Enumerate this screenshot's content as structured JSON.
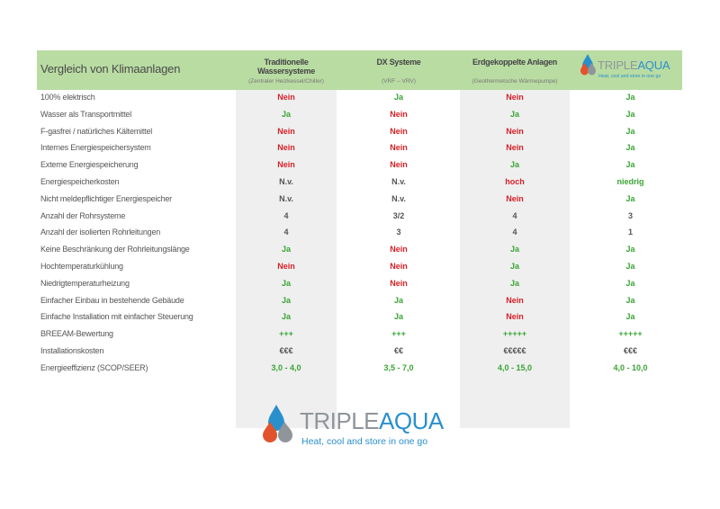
{
  "header": {
    "title": "Vergleich von Klimaanlagen",
    "columns": [
      {
        "name": "Traditionelle Wassersysteme",
        "sub": "(Zentraler Heizkessel/Chiller)"
      },
      {
        "name": "DX Systeme",
        "sub": "(VRF – VRV)"
      },
      {
        "name": "Erdgekoppelte Anlagen",
        "sub": "(Geothermetsche Wärmepumpe)"
      }
    ]
  },
  "logo": {
    "brand_a": "TRIPLE",
    "brand_b": "AQUA",
    "tagline": "Heat, cool and store in one go",
    "colors": {
      "blue": "#2a8fcd",
      "red": "#e2532d",
      "gray": "#8f959b"
    }
  },
  "rows": [
    {
      "label": "100% elektrisch",
      "values": [
        {
          "v": "Nein",
          "c": "red"
        },
        {
          "v": "Ja",
          "c": "green"
        },
        {
          "v": "Nein",
          "c": "red"
        },
        {
          "v": "Ja",
          "c": "green"
        }
      ]
    },
    {
      "label": "Wasser als Transportmittel",
      "values": [
        {
          "v": "Ja",
          "c": "green"
        },
        {
          "v": "Nein",
          "c": "red"
        },
        {
          "v": "Ja",
          "c": "green"
        },
        {
          "v": "Ja",
          "c": "green"
        }
      ]
    },
    {
      "label": "F-gasfrei / natürliches Kältemittel",
      "values": [
        {
          "v": "Nein",
          "c": "red"
        },
        {
          "v": "Nein",
          "c": "red"
        },
        {
          "v": "Nein",
          "c": "red"
        },
        {
          "v": "Ja",
          "c": "green"
        }
      ]
    },
    {
      "label": "Internes Energiespeichersystem",
      "values": [
        {
          "v": "Nein",
          "c": "red"
        },
        {
          "v": "Nein",
          "c": "red"
        },
        {
          "v": "Nein",
          "c": "red"
        },
        {
          "v": "Ja",
          "c": "green"
        }
      ]
    },
    {
      "label": "Externe Energiespeicherung",
      "values": [
        {
          "v": "Nein",
          "c": "red"
        },
        {
          "v": "Nein",
          "c": "red"
        },
        {
          "v": "Ja",
          "c": "green"
        },
        {
          "v": "Ja",
          "c": "green"
        }
      ]
    },
    {
      "label": "Energiespeicherkosten",
      "values": [
        {
          "v": "N.v.",
          "c": "gray"
        },
        {
          "v": "N.v.",
          "c": "gray"
        },
        {
          "v": "hoch",
          "c": "red"
        },
        {
          "v": "niedrig",
          "c": "green"
        }
      ]
    },
    {
      "label": "Nicht meldepflichtiger Energiespeicher",
      "values": [
        {
          "v": "N.v.",
          "c": "gray"
        },
        {
          "v": "N.v.",
          "c": "gray"
        },
        {
          "v": "Nein",
          "c": "red"
        },
        {
          "v": "Ja",
          "c": "green"
        }
      ]
    },
    {
      "label": "Anzahl der Rohrsysteme",
      "values": [
        {
          "v": "4",
          "c": "gray"
        },
        {
          "v": "3/2",
          "c": "gray"
        },
        {
          "v": "4",
          "c": "gray"
        },
        {
          "v": "3",
          "c": "gray"
        }
      ]
    },
    {
      "label": "Anzahl der isolierten Rohrleitungen",
      "values": [
        {
          "v": "4",
          "c": "gray"
        },
        {
          "v": "3",
          "c": "gray"
        },
        {
          "v": "4",
          "c": "gray"
        },
        {
          "v": "1",
          "c": "gray"
        }
      ]
    },
    {
      "label": "Keine Beschränkung der Rohrleitungslänge",
      "values": [
        {
          "v": "Ja",
          "c": "green"
        },
        {
          "v": "Nein",
          "c": "red"
        },
        {
          "v": "Ja",
          "c": "green"
        },
        {
          "v": "Ja",
          "c": "green"
        }
      ]
    },
    {
      "label": "Hochtemperaturkühlung",
      "values": [
        {
          "v": "Nein",
          "c": "red"
        },
        {
          "v": "Nein",
          "c": "red"
        },
        {
          "v": "Ja",
          "c": "green"
        },
        {
          "v": "Ja",
          "c": "green"
        }
      ]
    },
    {
      "label": "Niedrigtemperaturheizung",
      "values": [
        {
          "v": "Ja",
          "c": "green"
        },
        {
          "v": "Nein",
          "c": "red"
        },
        {
          "v": "Ja",
          "c": "green"
        },
        {
          "v": "Ja",
          "c": "green"
        }
      ]
    },
    {
      "label": "Einfacher Einbau in bestehende Gebäude",
      "values": [
        {
          "v": "Ja",
          "c": "green"
        },
        {
          "v": "Ja",
          "c": "green"
        },
        {
          "v": "Nein",
          "c": "red"
        },
        {
          "v": "Ja",
          "c": "green"
        }
      ]
    },
    {
      "label": "Einfache Installation mit einfacher Steuerung",
      "values": [
        {
          "v": "Ja",
          "c": "green"
        },
        {
          "v": "Ja",
          "c": "green"
        },
        {
          "v": "Nein",
          "c": "red"
        },
        {
          "v": "Ja",
          "c": "green"
        }
      ]
    },
    {
      "label": "BREEAM-Bewertung",
      "values": [
        {
          "v": "+++",
          "c": "green"
        },
        {
          "v": "+++",
          "c": "green"
        },
        {
          "v": "+++++",
          "c": "green"
        },
        {
          "v": "+++++",
          "c": "green"
        }
      ]
    },
    {
      "label": "Installationskosten",
      "values": [
        {
          "v": "€€€",
          "c": "gray"
        },
        {
          "v": "€€",
          "c": "gray"
        },
        {
          "v": "€€€€€",
          "c": "gray"
        },
        {
          "v": "€€€",
          "c": "gray"
        }
      ]
    },
    {
      "label": "Energieeffizienz (SCOP/SEER)",
      "values": [
        {
          "v": "3,0 - 4,0",
          "c": "green"
        },
        {
          "v": "3,5 - 7,0",
          "c": "green"
        },
        {
          "v": "4,0 - 15,0",
          "c": "green"
        },
        {
          "v": "4,0 - 10,0",
          "c": "green"
        }
      ]
    }
  ]
}
